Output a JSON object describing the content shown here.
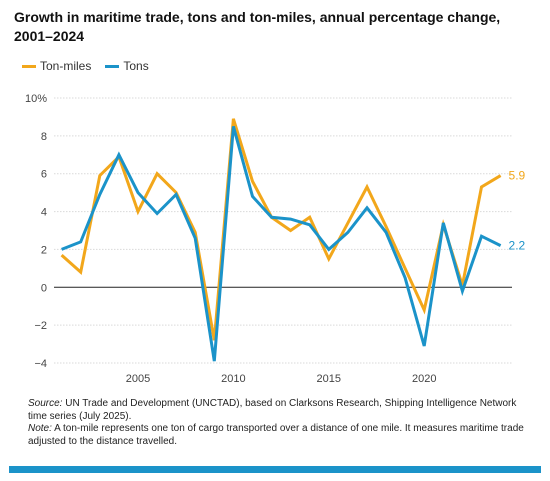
{
  "title": "Growth in maritime trade, tons and ton-miles, annual percentage change, 2001–2024",
  "colors": {
    "ton_miles": "#f2a71b",
    "tons": "#1b93c9",
    "grid": "#d9d9d9",
    "zero_line": "#222222",
    "bar": "#1b93c9"
  },
  "chart_data": {
    "type": "line",
    "title": "Growth in maritime trade, tons and ton-miles, annual percentage change, 2001–2024",
    "xlabel": "",
    "ylabel": "",
    "x": [
      2001,
      2002,
      2003,
      2004,
      2005,
      2006,
      2007,
      2008,
      2009,
      2010,
      2011,
      2012,
      2013,
      2014,
      2015,
      2016,
      2017,
      2018,
      2019,
      2020,
      2021,
      2022,
      2023,
      2024
    ],
    "xlim": [
      2000.6,
      2024.6
    ],
    "ylim": [
      -4,
      10
    ],
    "y_ticks": [
      -4,
      -2,
      0,
      2,
      4,
      6,
      8,
      10
    ],
    "y_tick_labels": [
      "−4",
      "−2",
      "0",
      "2",
      "4",
      "6",
      "8",
      "10%"
    ],
    "x_ticks": [
      2005,
      2010,
      2015,
      2020
    ],
    "x_tick_labels": [
      "2005",
      "2010",
      "2015",
      "2020"
    ],
    "grid": true,
    "legend_position": "top-left",
    "series": [
      {
        "name": "Ton-miles",
        "color": "#f2a71b",
        "values": [
          1.7,
          0.8,
          5.9,
          6.9,
          4.0,
          6.0,
          5.0,
          2.9,
          -2.8,
          8.9,
          5.6,
          3.7,
          3.0,
          3.7,
          1.5,
          3.4,
          5.3,
          3.2,
          1.0,
          -1.2,
          3.3,
          0.1,
          5.3,
          5.9
        ],
        "end_label": "5.9"
      },
      {
        "name": "Tons",
        "color": "#1b93c9",
        "values": [
          2.0,
          2.4,
          4.9,
          7.0,
          5.0,
          3.9,
          4.9,
          2.6,
          -3.9,
          8.5,
          4.8,
          3.7,
          3.6,
          3.3,
          2.0,
          2.9,
          4.2,
          2.9,
          0.5,
          -3.1,
          3.4,
          -0.2,
          2.7,
          2.2
        ],
        "end_label": "2.2"
      }
    ]
  },
  "notes": {
    "source_label": "Source:",
    "source_text": " UN Trade and Development (UNCTAD), based on Clarksons Research, Shipping Intelligence Network time series (July 2025).",
    "note_label": "Note:",
    "note_text": " A ton-mile represents one ton of cargo transported over a distance of one mile. It measures maritime trade adjusted to the distance travelled."
  }
}
